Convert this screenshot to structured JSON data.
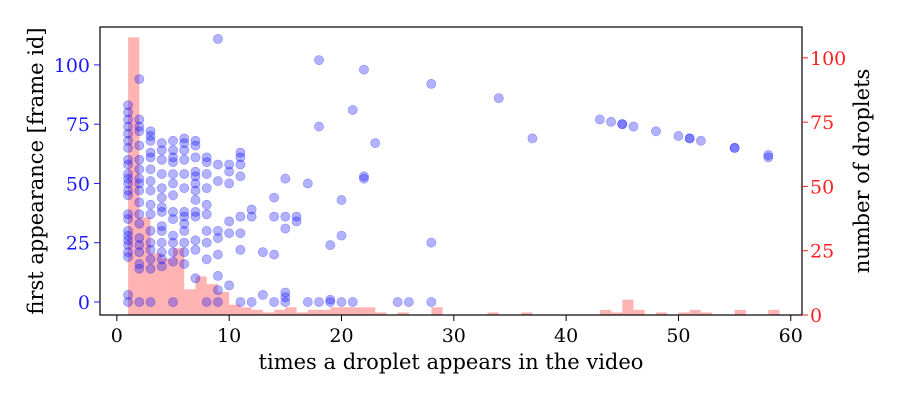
{
  "chart_data": {
    "type": "scatter",
    "xlabel": "times a droplet appears in the video",
    "ylabel": "first appearance [frame id]",
    "y2label": "number of droplets",
    "xlim": [
      -1.5,
      61
    ],
    "ylim": [
      -5.5,
      116
    ],
    "y2lim": [
      0,
      112
    ],
    "xticks": [
      0,
      10,
      20,
      30,
      40,
      50,
      60
    ],
    "yticks": [
      0,
      25,
      50,
      75,
      100
    ],
    "y2ticks": [
      0,
      25,
      50,
      75,
      100
    ],
    "colors": {
      "scatter": "#0000ff",
      "histogram": "#ff7777",
      "left_axis": "#1a1aff",
      "right_axis": "#ff2020"
    },
    "histogram": {
      "name": "number of droplets",
      "bin_width": 1,
      "bins": [
        {
          "x": 1,
          "count": 108
        },
        {
          "x": 2,
          "count": 38
        },
        {
          "x": 3,
          "count": 24
        },
        {
          "x": 4,
          "count": 22
        },
        {
          "x": 5,
          "count": 26
        },
        {
          "x": 6,
          "count": 10
        },
        {
          "x": 7,
          "count": 15
        },
        {
          "x": 8,
          "count": 12
        },
        {
          "x": 9,
          "count": 9
        },
        {
          "x": 10,
          "count": 4
        },
        {
          "x": 11,
          "count": 3
        },
        {
          "x": 12,
          "count": 2
        },
        {
          "x": 13,
          "count": 1
        },
        {
          "x": 14,
          "count": 2
        },
        {
          "x": 15,
          "count": 3
        },
        {
          "x": 16,
          "count": 1
        },
        {
          "x": 17,
          "count": 2
        },
        {
          "x": 18,
          "count": 2
        },
        {
          "x": 19,
          "count": 3
        },
        {
          "x": 20,
          "count": 3
        },
        {
          "x": 21,
          "count": 3
        },
        {
          "x": 22,
          "count": 3
        },
        {
          "x": 23,
          "count": 1
        },
        {
          "x": 25,
          "count": 1
        },
        {
          "x": 28,
          "count": 3
        },
        {
          "x": 33,
          "count": 1
        },
        {
          "x": 36,
          "count": 1
        },
        {
          "x": 43,
          "count": 2
        },
        {
          "x": 44,
          "count": 1
        },
        {
          "x": 45,
          "count": 6
        },
        {
          "x": 46,
          "count": 2
        },
        {
          "x": 48,
          "count": 1
        },
        {
          "x": 50,
          "count": 1
        },
        {
          "x": 51,
          "count": 2
        },
        {
          "x": 52,
          "count": 1
        },
        {
          "x": 55,
          "count": 2
        },
        {
          "x": 58,
          "count": 2
        }
      ]
    },
    "scatter": {
      "name": "first appearance",
      "points": [
        [
          1,
          0
        ],
        [
          1,
          3
        ],
        [
          1,
          19
        ],
        [
          1,
          21
        ],
        [
          1,
          24
        ],
        [
          1,
          26
        ],
        [
          1,
          28
        ],
        [
          1,
          30
        ],
        [
          1,
          35
        ],
        [
          1,
          37
        ],
        [
          1,
          45
        ],
        [
          1,
          47
        ],
        [
          1,
          50
        ],
        [
          1,
          52
        ],
        [
          1,
          54
        ],
        [
          1,
          58
        ],
        [
          1,
          60
        ],
        [
          1,
          65
        ],
        [
          1,
          68
        ],
        [
          1,
          71
        ],
        [
          1,
          74
        ],
        [
          1,
          77
        ],
        [
          1,
          80
        ],
        [
          1,
          83
        ],
        [
          2,
          0
        ],
        [
          2,
          14
        ],
        [
          2,
          16
        ],
        [
          2,
          21
        ],
        [
          2,
          24
        ],
        [
          2,
          27
        ],
        [
          2,
          33
        ],
        [
          2,
          37
        ],
        [
          2,
          42
        ],
        [
          2,
          47
        ],
        [
          2,
          50
        ],
        [
          2,
          52
        ],
        [
          2,
          56
        ],
        [
          2,
          60
        ],
        [
          2,
          66
        ],
        [
          2,
          72
        ],
        [
          2,
          74
        ],
        [
          2,
          77
        ],
        [
          2,
          94
        ],
        [
          3,
          0
        ],
        [
          3,
          14
        ],
        [
          3,
          18
        ],
        [
          3,
          22
        ],
        [
          3,
          25
        ],
        [
          3,
          30
        ],
        [
          3,
          37
        ],
        [
          3,
          41
        ],
        [
          3,
          47
        ],
        [
          3,
          51
        ],
        [
          3,
          56
        ],
        [
          3,
          61
        ],
        [
          3,
          63
        ],
        [
          3,
          68
        ],
        [
          3,
          70
        ],
        [
          3,
          72
        ],
        [
          4,
          15
        ],
        [
          4,
          18
        ],
        [
          4,
          21
        ],
        [
          4,
          25
        ],
        [
          4,
          30
        ],
        [
          4,
          32
        ],
        [
          4,
          38
        ],
        [
          4,
          40
        ],
        [
          4,
          44
        ],
        [
          4,
          48
        ],
        [
          4,
          54
        ],
        [
          4,
          60
        ],
        [
          4,
          64
        ],
        [
          4,
          67
        ],
        [
          5,
          0
        ],
        [
          5,
          17
        ],
        [
          5,
          21
        ],
        [
          5,
          25
        ],
        [
          5,
          28
        ],
        [
          5,
          35
        ],
        [
          5,
          38
        ],
        [
          5,
          45
        ],
        [
          5,
          50
        ],
        [
          5,
          54
        ],
        [
          5,
          59
        ],
        [
          5,
          61
        ],
        [
          5,
          64
        ],
        [
          5,
          68
        ],
        [
          6,
          16
        ],
        [
          6,
          21
        ],
        [
          6,
          25
        ],
        [
          6,
          30
        ],
        [
          6,
          33
        ],
        [
          6,
          36
        ],
        [
          6,
          38
        ],
        [
          6,
          48
        ],
        [
          6,
          54
        ],
        [
          6,
          60
        ],
        [
          6,
          64
        ],
        [
          6,
          67
        ],
        [
          6,
          69
        ],
        [
          7,
          10
        ],
        [
          7,
          22
        ],
        [
          7,
          26
        ],
        [
          7,
          36
        ],
        [
          7,
          38
        ],
        [
          7,
          43
        ],
        [
          7,
          47
        ],
        [
          7,
          50
        ],
        [
          7,
          53
        ],
        [
          7,
          55
        ],
        [
          7,
          61
        ],
        [
          7,
          66
        ],
        [
          7,
          68
        ],
        [
          8,
          0
        ],
        [
          8,
          18
        ],
        [
          8,
          25
        ],
        [
          8,
          30
        ],
        [
          8,
          37
        ],
        [
          8,
          41
        ],
        [
          8,
          48
        ],
        [
          8,
          54
        ],
        [
          8,
          59
        ],
        [
          8,
          61
        ],
        [
          9,
          0
        ],
        [
          9,
          5
        ],
        [
          9,
          11
        ],
        [
          9,
          20
        ],
        [
          9,
          27
        ],
        [
          9,
          30
        ],
        [
          9,
          51
        ],
        [
          9,
          58
        ],
        [
          9,
          111
        ],
        [
          10,
          7
        ],
        [
          10,
          29
        ],
        [
          10,
          34
        ],
        [
          10,
          50
        ],
        [
          10,
          55
        ],
        [
          10,
          58
        ],
        [
          11,
          0
        ],
        [
          11,
          22
        ],
        [
          11,
          29
        ],
        [
          11,
          36
        ],
        [
          11,
          53
        ],
        [
          11,
          58
        ],
        [
          11,
          61
        ],
        [
          11,
          63
        ],
        [
          12,
          0
        ],
        [
          12,
          36
        ],
        [
          12,
          39
        ],
        [
          13,
          3
        ],
        [
          13,
          21
        ],
        [
          14,
          0
        ],
        [
          14,
          20
        ],
        [
          14,
          36
        ],
        [
          14,
          44
        ],
        [
          15,
          0
        ],
        [
          15,
          2
        ],
        [
          15,
          4
        ],
        [
          15,
          31
        ],
        [
          15,
          36
        ],
        [
          15,
          52
        ],
        [
          16,
          34
        ],
        [
          16,
          36
        ],
        [
          17,
          0
        ],
        [
          17,
          50
        ],
        [
          18,
          0
        ],
        [
          18,
          74
        ],
        [
          18,
          102
        ],
        [
          19,
          0
        ],
        [
          19,
          1
        ],
        [
          19,
          24
        ],
        [
          20,
          0
        ],
        [
          20,
          28
        ],
        [
          20,
          43
        ],
        [
          21,
          0
        ],
        [
          21,
          81
        ],
        [
          22,
          52
        ],
        [
          22,
          53
        ],
        [
          22,
          98
        ],
        [
          23,
          67
        ],
        [
          25,
          0
        ],
        [
          26,
          0
        ],
        [
          28,
          0
        ],
        [
          28,
          25
        ],
        [
          28,
          92
        ],
        [
          34,
          86
        ],
        [
          37,
          69
        ],
        [
          43,
          77
        ],
        [
          44,
          76
        ],
        [
          45,
          75
        ],
        [
          45,
          75
        ],
        [
          46,
          74
        ],
        [
          48,
          72
        ],
        [
          50,
          70
        ],
        [
          51,
          69
        ],
        [
          51,
          69
        ],
        [
          52,
          68
        ],
        [
          55,
          65
        ],
        [
          55,
          65
        ],
        [
          58,
          61
        ],
        [
          58,
          62
        ]
      ]
    }
  }
}
